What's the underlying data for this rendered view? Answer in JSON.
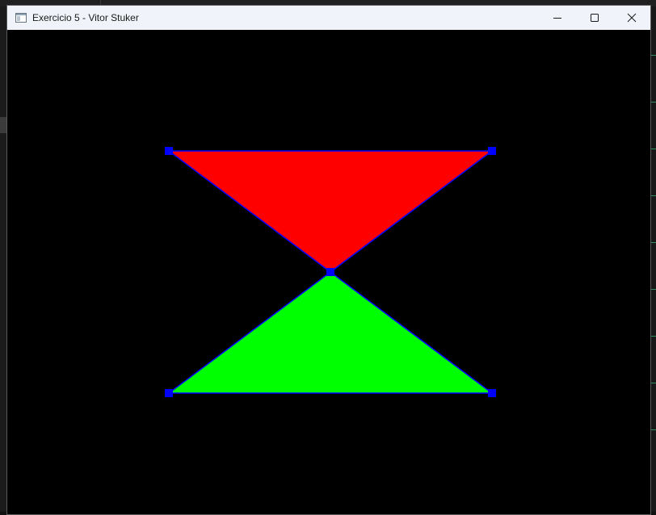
{
  "window": {
    "title": "Exercicio 5 - Vitor Stuker"
  },
  "colors": {
    "titlebar_bg": "#f0f3f9",
    "canvas_bg": "#000000",
    "top_triangle_fill": "#ff0000",
    "bottom_triangle_fill": "#00ff00",
    "edge_color": "#0000ff",
    "vertex_color": "#0000ff"
  },
  "icons": {
    "app": "app-window-icon",
    "minimize": "minimize-icon",
    "maximize": "maximize-icon",
    "close": "close-icon"
  }
}
